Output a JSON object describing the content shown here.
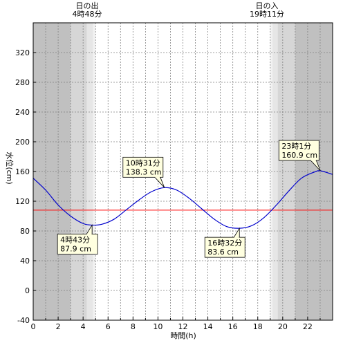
{
  "chart_data": {
    "type": "line",
    "xlabel": "時間(h)",
    "ylabel": "水位(cm)",
    "xlim": [
      0,
      24
    ],
    "ylim": [
      -40,
      360
    ],
    "xticks": [
      0,
      2,
      4,
      6,
      8,
      10,
      12,
      14,
      16,
      18,
      20,
      22
    ],
    "yticks": [
      -40,
      0,
      40,
      80,
      120,
      160,
      200,
      240,
      280,
      320
    ],
    "grid": true,
    "reference_line": {
      "y": 108,
      "color": "#ff0000"
    },
    "line_color": "#0000cc",
    "sunrise": {
      "label": "日の出",
      "time": "4時48分",
      "hour": 4.8
    },
    "sunset": {
      "label": "日の入",
      "time": "19時11分",
      "hour": 19.183
    },
    "shading": [
      {
        "from": 0,
        "to": 3.0,
        "color": "#c0c0c0"
      },
      {
        "from": 3.0,
        "to": 4.3,
        "color": "#d6d6d6"
      },
      {
        "from": 4.3,
        "to": 4.8,
        "color": "#e6e6e6"
      },
      {
        "from": 4.8,
        "to": 5.0,
        "color": "#f2f2f2"
      },
      {
        "from": 19.0,
        "to": 19.183,
        "color": "#f2f2f2"
      },
      {
        "from": 19.183,
        "to": 19.6,
        "color": "#e6e6e6"
      },
      {
        "from": 19.6,
        "to": 21.0,
        "color": "#d6d6d6"
      },
      {
        "from": 21.0,
        "to": 24,
        "color": "#c0c0c0"
      }
    ],
    "series": [
      {
        "x": [
          0,
          1,
          2,
          3,
          4,
          4.72,
          5.5,
          6.5,
          7.5,
          8.5,
          9.5,
          10.52,
          11.5,
          12.5,
          13.5,
          14.5,
          15.5,
          16.53,
          17.5,
          18.5,
          19.5,
          20.5,
          21.5,
          22.5,
          23.02,
          24
        ],
        "values": [
          151,
          135,
          115,
          100,
          90,
          87.9,
          89,
          96,
          109,
          122,
          133,
          138.3,
          135,
          124,
          110,
          96,
          86,
          83.6,
          87,
          98,
          115,
          134,
          151,
          159,
          160.9,
          156
        ]
      }
    ],
    "annotations": [
      {
        "time": "4時43分",
        "value": "87.9 cm",
        "x": 4.72,
        "y": 87.9,
        "pos": "below-left"
      },
      {
        "time": "10時31分",
        "value": "138.3 cm",
        "x": 10.52,
        "y": 138.3,
        "pos": "above-left"
      },
      {
        "time": "16時32分",
        "value": "83.6 cm",
        "x": 16.53,
        "y": 83.6,
        "pos": "below-left"
      },
      {
        "time": "23時1分",
        "value": "160.9 cm",
        "x": 23.02,
        "y": 160.9,
        "pos": "above-left"
      }
    ]
  }
}
